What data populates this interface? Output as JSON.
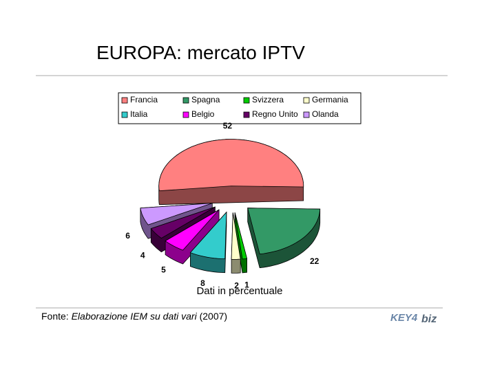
{
  "title": "EUROPA: mercato IPTV",
  "chart_data": {
    "type": "pie",
    "categories": [
      "Francia",
      "Spagna",
      "Svizzera",
      "Germania",
      "Italia",
      "Belgio",
      "Regno Unito",
      "Olanda"
    ],
    "values": [
      52,
      22,
      1,
      2,
      8,
      5,
      4,
      6
    ],
    "colors": [
      "#ff8080",
      "#339966",
      "#00cc00",
      "#ffffcc",
      "#33cccc",
      "#ff00ff",
      "#660066",
      "#cc99ff"
    ],
    "caption": "Dati in percentuale",
    "legend": true
  },
  "footer": {
    "prefix": "Fonte:",
    "source": "Elaborazione IEM su dati vari",
    "suffix": "(2007)"
  },
  "logo": {
    "left": "KEY4",
    "right": "biz"
  }
}
